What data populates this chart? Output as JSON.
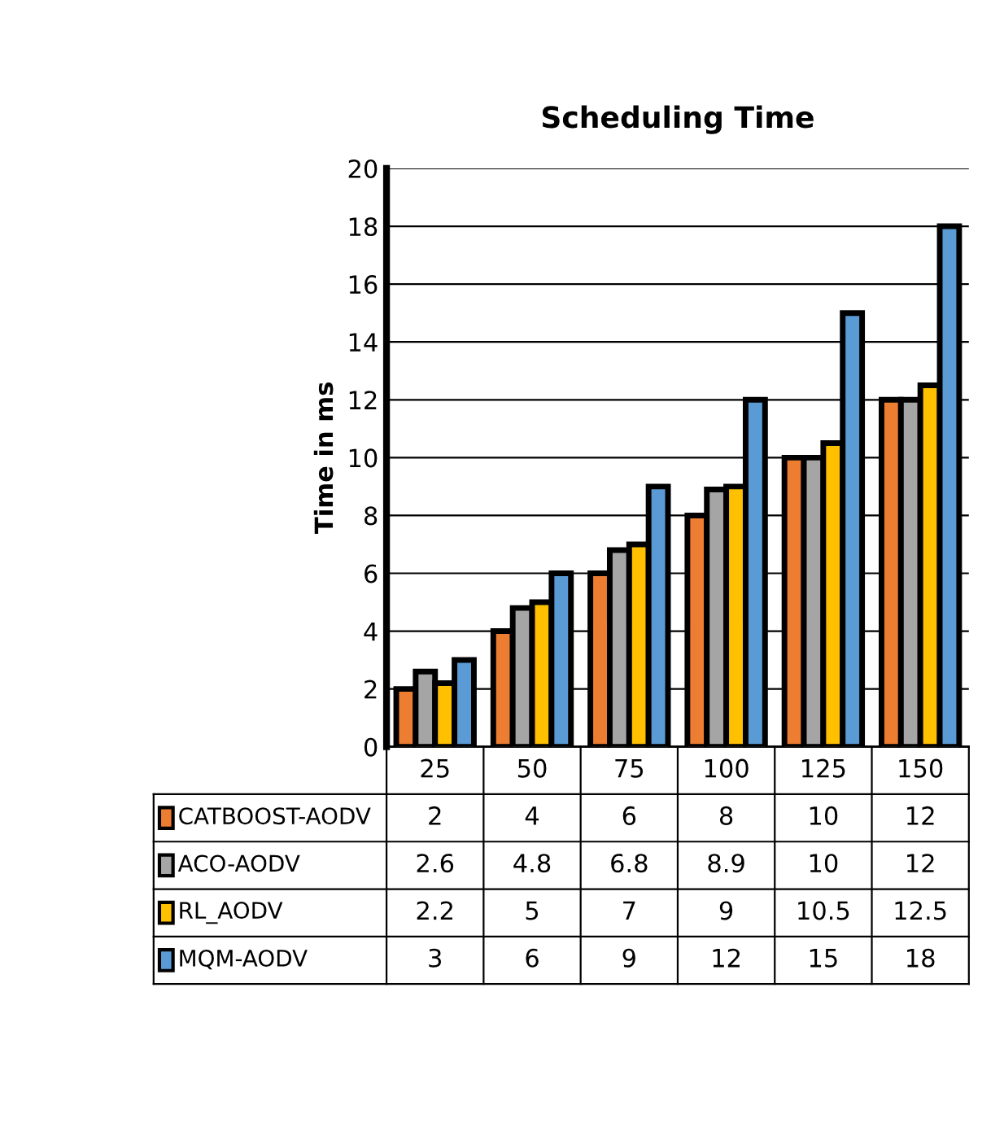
{
  "chart_data": {
    "type": "bar",
    "title": "Scheduling Time",
    "ylabel": "Time in ms",
    "categories": [
      "25",
      "50",
      "75",
      "100",
      "125",
      "150"
    ],
    "series": [
      {
        "name": "CATBOOST-AODV",
        "color": "#ed7d31",
        "values": [
          2,
          4,
          6,
          8,
          10,
          12
        ]
      },
      {
        "name": "ACO-AODV",
        "color": "#a5a5a5",
        "values": [
          2.6,
          4.8,
          6.8,
          8.9,
          10,
          12
        ]
      },
      {
        "name": "RL_AODV",
        "color": "#ffc000",
        "values": [
          2.2,
          5,
          7,
          9,
          10.5,
          12.5
        ]
      },
      {
        "name": "MQM-AODV",
        "color": "#5b9bd5",
        "values": [
          3,
          6,
          9,
          12,
          15,
          18
        ]
      }
    ],
    "ylim": [
      0,
      20
    ],
    "yticks": [
      0,
      2,
      4,
      6,
      8,
      10,
      12,
      14,
      16,
      18,
      20
    ],
    "grid": "y",
    "data_labels": true,
    "legend": "bottom left"
  }
}
